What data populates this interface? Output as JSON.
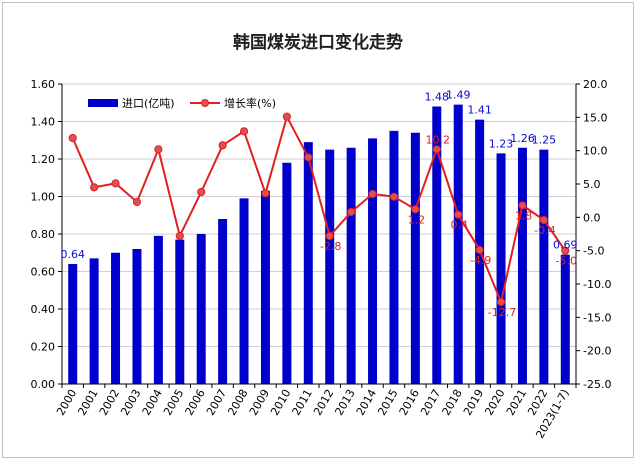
{
  "colors": {
    "bar": "#0000cc",
    "line": "#e02020",
    "marker": "#e05050",
    "grid": "#cfcfcf"
  },
  "chart_data": {
    "type": "bar",
    "title": "韩国煤炭进口变化走势",
    "categories": [
      "2000",
      "2001",
      "2002",
      "2003",
      "2004",
      "2005",
      "2006",
      "2007",
      "2008",
      "2009",
      "2010",
      "2011",
      "2012",
      "2013",
      "2014",
      "2015",
      "2016",
      "2017",
      "2018",
      "2019",
      "2020",
      "2021",
      "2022",
      "2023(1-7)"
    ],
    "ylim": [
      0,
      1.6
    ],
    "y2lim": [
      -25,
      20
    ],
    "yticks": [
      "0.00",
      "0.20",
      "0.40",
      "0.60",
      "0.80",
      "1.00",
      "1.20",
      "1.40",
      "1.60"
    ],
    "y2ticks": [
      "-25.0",
      "-20.0",
      "-15.0",
      "-10.0",
      "-5.0",
      "0.0",
      "5.0",
      "10.0",
      "15.0",
      "20.0"
    ],
    "legend_position": "top-left",
    "grid": "horizontal",
    "series": [
      {
        "name": "进口(亿吨)",
        "type": "bar",
        "axis": "left",
        "values": [
          0.64,
          0.67,
          0.7,
          0.72,
          0.79,
          0.77,
          0.8,
          0.88,
          0.99,
          1.03,
          1.18,
          1.29,
          1.25,
          1.26,
          1.31,
          1.35,
          1.34,
          1.48,
          1.49,
          1.41,
          1.23,
          1.26,
          1.25,
          0.69
        ],
        "data_labels": [
          "0.64",
          "",
          "",
          "",
          "",
          "",
          "",
          "",
          "",
          "",
          "",
          "",
          "",
          "",
          "",
          "",
          "",
          "1.48",
          "1.49",
          "1.41",
          "1.23",
          "1.26",
          "1.25",
          "0.69"
        ]
      },
      {
        "name": "增长率(%)",
        "type": "line",
        "axis": "right",
        "values": [
          11.9,
          4.5,
          5.1,
          2.3,
          10.2,
          -2.8,
          3.8,
          10.8,
          12.9,
          3.6,
          15.1,
          9.0,
          -2.8,
          0.8,
          3.5,
          3.1,
          1.2,
          10.2,
          0.4,
          -4.9,
          -12.7,
          1.8,
          -0.4,
          -5.0
        ],
        "data_labels": [
          "",
          "",
          "",
          "",
          "",
          "",
          "",
          "",
          "",
          "",
          "",
          "",
          "-2.8",
          "",
          "",
          "",
          "1.2",
          "10.2",
          "0.4",
          "-4.9",
          "-12.7",
          "1.8",
          "-0.4",
          "-5.0"
        ]
      }
    ]
  }
}
